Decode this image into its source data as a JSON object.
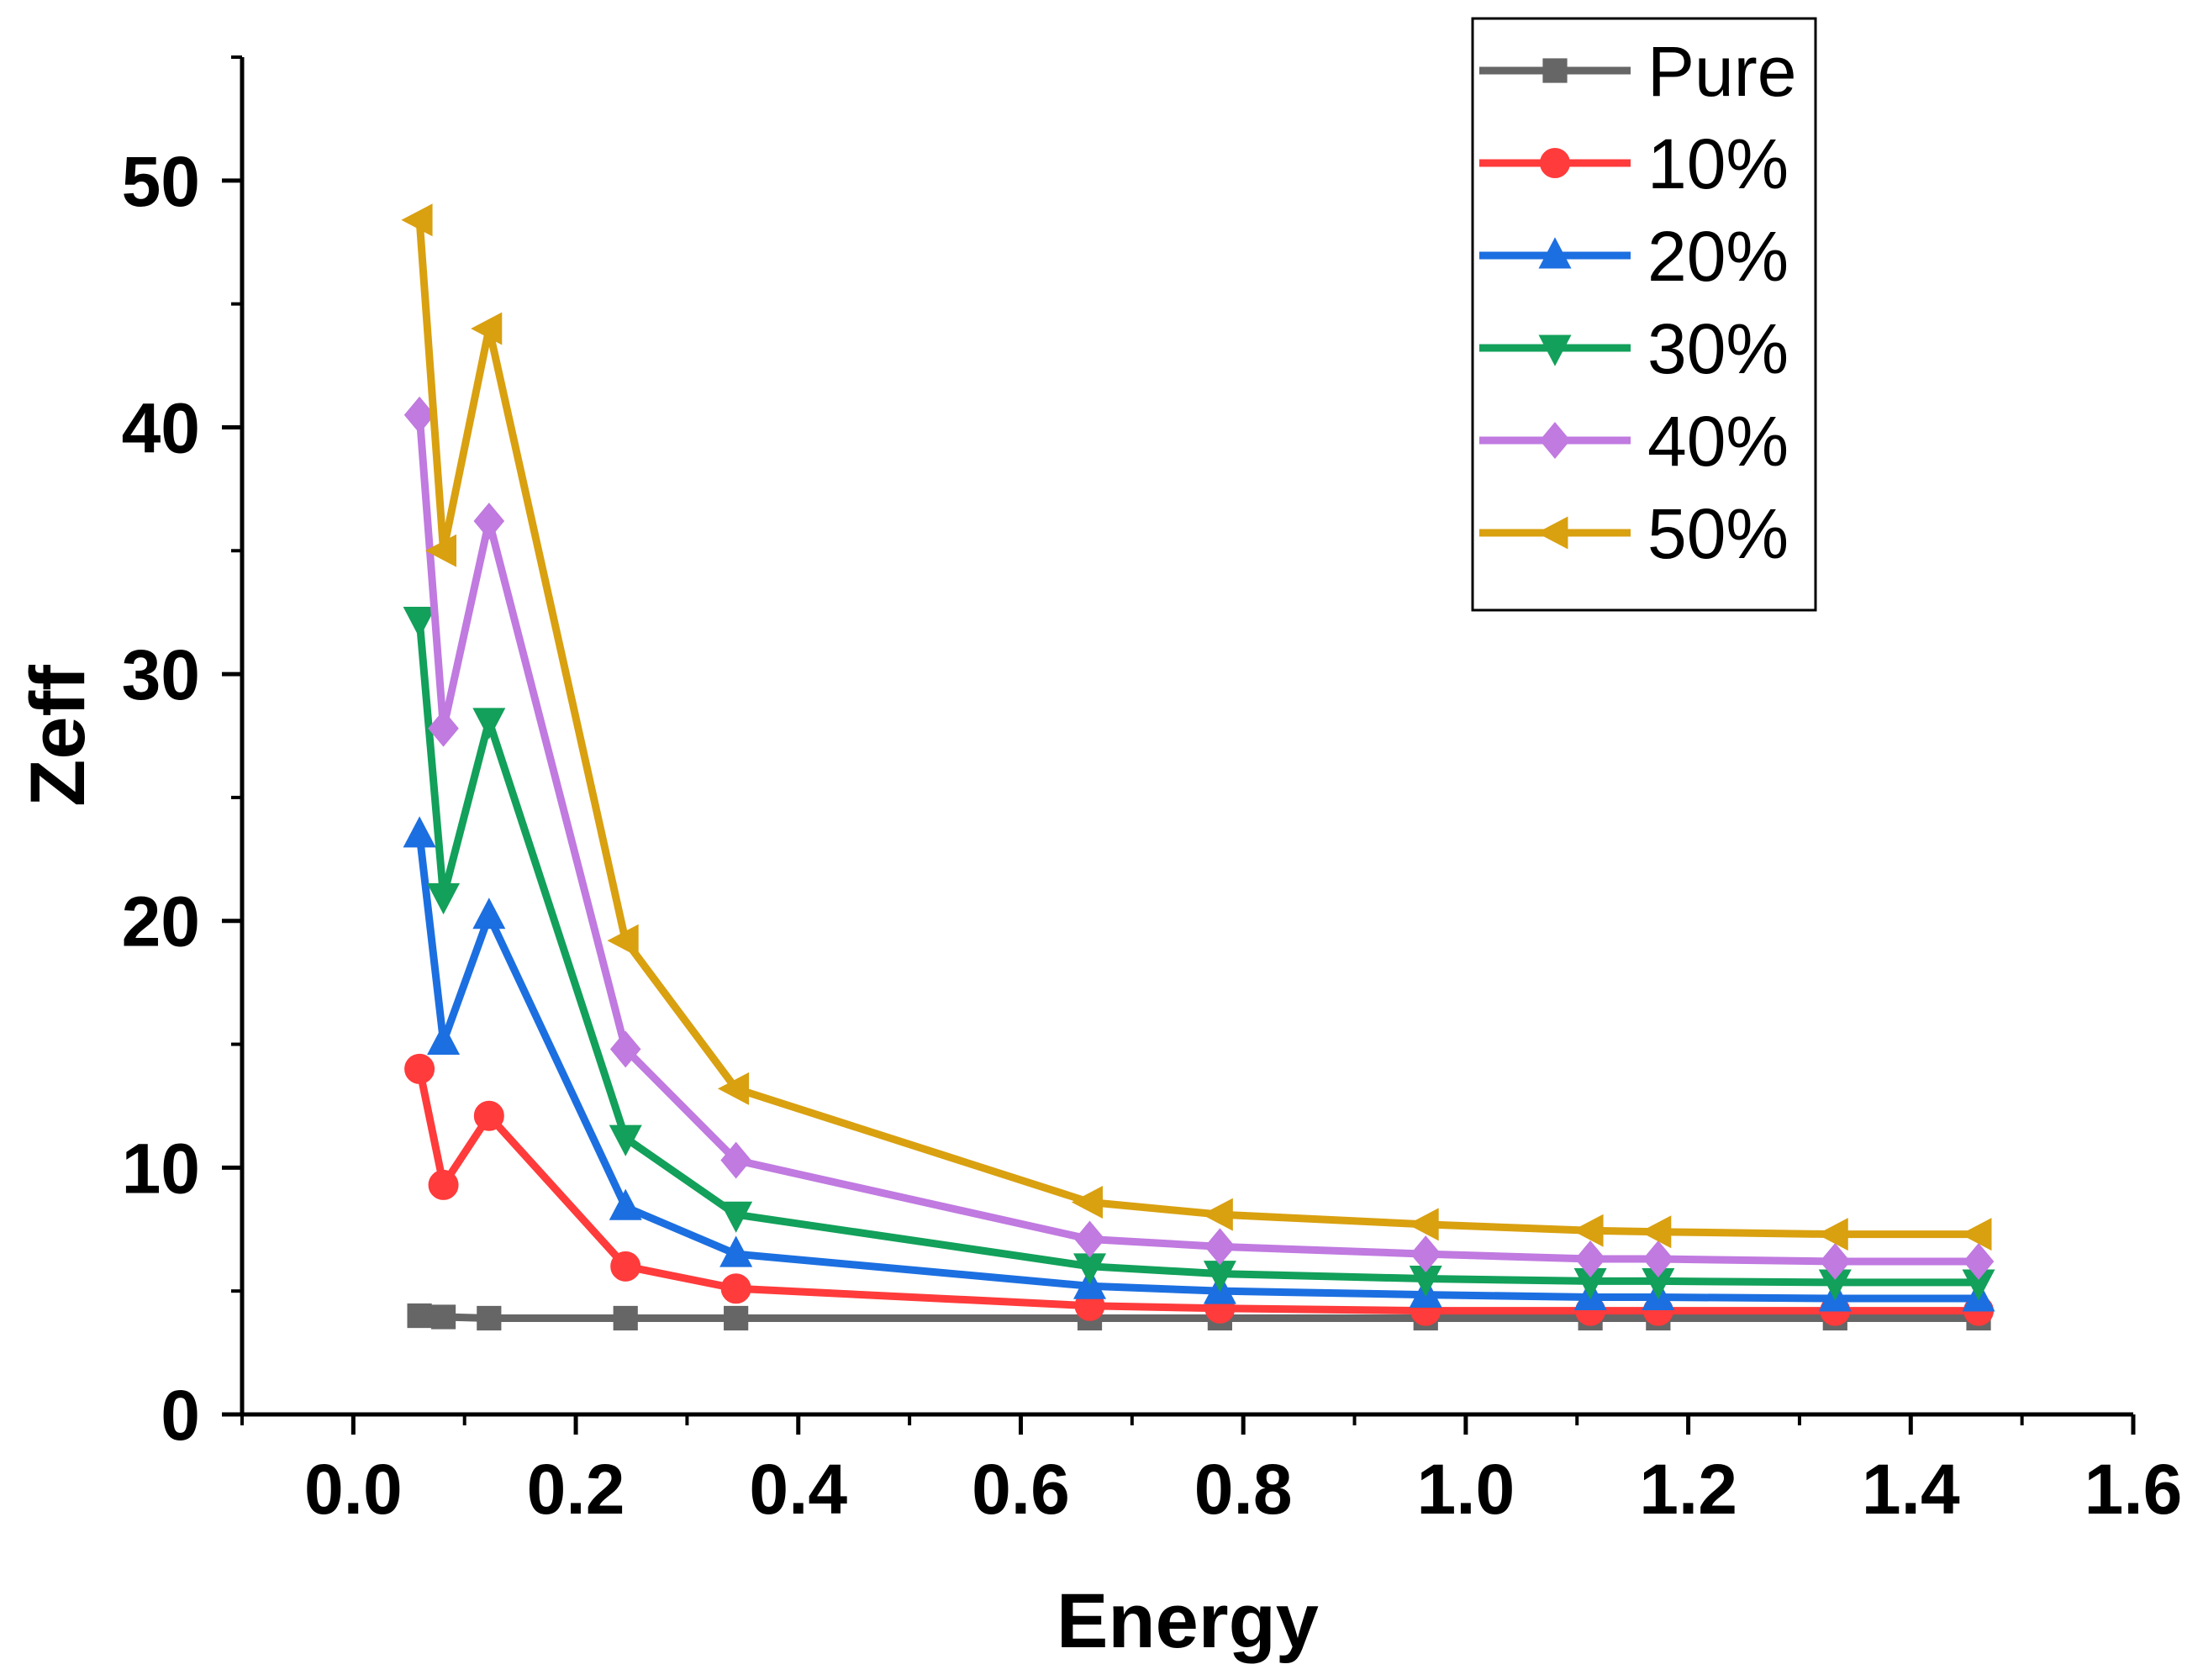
{
  "chart_data": {
    "type": "line",
    "title": "",
    "xlabel": "Energy",
    "ylabel": "Zeff",
    "xlim": [
      -0.1,
      1.6
    ],
    "ylim": [
      0,
      55
    ],
    "x_ticks": [
      0.0,
      0.2,
      0.4,
      0.6,
      0.8,
      1.0,
      1.2,
      1.4,
      1.6
    ],
    "x_tick_labels": [
      "0.0",
      "0.2",
      "0.4",
      "0.6",
      "0.8",
      "1.0",
      "1.2",
      "1.4",
      "1.6"
    ],
    "y_ticks": [
      0,
      10,
      20,
      30,
      40,
      50
    ],
    "y_tick_labels": [
      "0",
      "10",
      "20",
      "30",
      "40",
      "50"
    ],
    "grid": false,
    "legend_position": "top-right",
    "x": [
      0.0595,
      0.081,
      0.122,
      0.2447,
      0.344,
      0.662,
      0.779,
      0.964,
      1.112,
      1.173,
      1.332,
      1.461
    ],
    "series": [
      {
        "name": "Pure",
        "color": "#666666",
        "marker": "square",
        "values": [
          4.0,
          3.95,
          3.9,
          3.9,
          3.9,
          3.9,
          3.9,
          3.9,
          3.9,
          3.9,
          3.9,
          3.9
        ]
      },
      {
        "name": "10%",
        "color": "#ff3b3b",
        "marker": "circle",
        "values": [
          14.0,
          9.3,
          12.1,
          6.0,
          5.1,
          4.4,
          4.3,
          4.2,
          4.2,
          4.2,
          4.2,
          4.2
        ]
      },
      {
        "name": "20%",
        "color": "#1c6fe0",
        "marker": "triangle-up",
        "values": [
          23.5,
          15.1,
          20.2,
          8.4,
          6.5,
          5.2,
          5.0,
          4.85,
          4.75,
          4.75,
          4.7,
          4.7
        ]
      },
      {
        "name": "30%",
        "color": "#12a05a",
        "marker": "triangle-down",
        "values": [
          32.2,
          21.0,
          28.1,
          11.2,
          8.1,
          6.0,
          5.7,
          5.5,
          5.4,
          5.4,
          5.35,
          5.35
        ]
      },
      {
        "name": "40%",
        "color": "#c07ae0",
        "marker": "diamond",
        "values": [
          40.5,
          27.8,
          36.2,
          14.8,
          10.3,
          7.1,
          6.8,
          6.5,
          6.3,
          6.3,
          6.2,
          6.2
        ]
      },
      {
        "name": "50%",
        "color": "#d9a010",
        "marker": "triangle-left",
        "values": [
          48.4,
          35.0,
          44.0,
          19.2,
          13.2,
          8.6,
          8.1,
          7.7,
          7.45,
          7.4,
          7.3,
          7.3
        ]
      }
    ]
  }
}
